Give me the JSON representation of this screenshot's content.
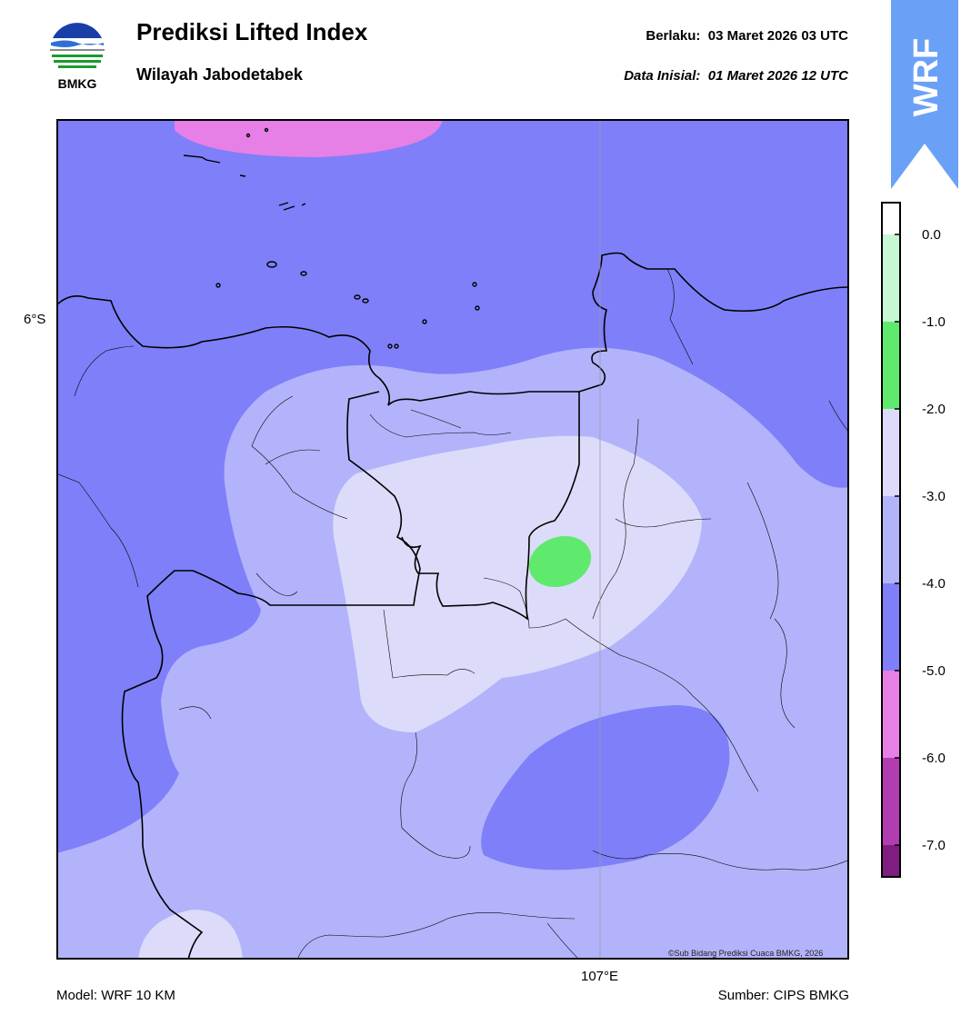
{
  "header": {
    "logo_text": "BMKG",
    "title": "Prediksi Lifted Index",
    "subtitle": "Wilayah Jabodetabek",
    "valid_label": "Berlaku:",
    "valid_time": "03 Maret 2026 03 UTC",
    "init_label": "Data Inisial:",
    "init_time": "01 Maret 2026 12 UTC"
  },
  "badge": {
    "text": "WRF",
    "color": "#6aa1f7"
  },
  "map": {
    "lat_label": "6°S",
    "lon_label": "107°E",
    "copyright": "©Sub Bidang Prediksi Cuaca BMKG, 2026"
  },
  "colorbar": {
    "ticks": [
      "0.0",
      "-1.0",
      "-2.0",
      "-3.0",
      "-4.0",
      "-5.0",
      "-6.0",
      "-7.0"
    ],
    "colors": {
      "0_to_-1": "#c8f7d4",
      "-1_to_-2": "#5fea6e",
      "-2_to_-3": "#dcdcfa",
      "-3_to_-4": "#b3b3fb",
      "-4_to_-5": "#7f7ff9",
      "-5_to_-6": "#e680e6",
      "-6_to_-7": "#b23db3",
      "below_-7": "#801d80"
    }
  },
  "footer": {
    "model": "Model: WRF 10 KM",
    "source": "Sumber: CIPS BMKG"
  }
}
